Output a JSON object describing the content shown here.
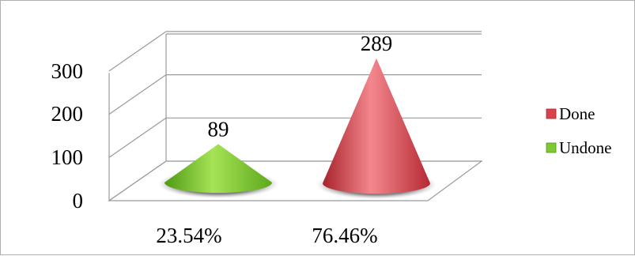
{
  "chart_data": {
    "type": "cone3d",
    "categories": [
      "23.54%",
      "76.46%"
    ],
    "series": [
      {
        "name": "Undone",
        "values": [
          89,
          0
        ],
        "color": "#7ec832"
      },
      {
        "name": "Done",
        "values": [
          0,
          289
        ],
        "color": "#d9434c"
      }
    ],
    "data_labels": [
      "89",
      "289"
    ],
    "y_ticks": [
      "0",
      "100",
      "200",
      "300"
    ],
    "ylim": [
      0,
      350
    ],
    "grid": true,
    "legend_position": "right",
    "legend": [
      {
        "label": "Done",
        "color": "#d9434c"
      },
      {
        "label": "Undone",
        "color": "#7ec832"
      }
    ]
  }
}
